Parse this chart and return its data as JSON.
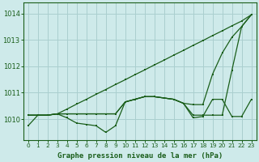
{
  "background_color": "#ceeaea",
  "grid_color": "#aacfcf",
  "line_color": "#1a5e1a",
  "title": "Graphe pression niveau de la mer (hPa)",
  "ylim": [
    1009.2,
    1014.4
  ],
  "xlim": [
    -0.5,
    23.5
  ],
  "yticks": [
    1010,
    1011,
    1012,
    1013,
    1014
  ],
  "xticks": [
    0,
    1,
    2,
    3,
    4,
    5,
    6,
    7,
    8,
    9,
    10,
    11,
    12,
    13,
    14,
    15,
    16,
    17,
    18,
    19,
    20,
    21,
    22,
    23
  ],
  "line_straight": [
    1010.15,
    1010.15,
    1010.15,
    1010.2,
    1010.38,
    1010.57,
    1010.75,
    1010.94,
    1011.12,
    1011.31,
    1011.49,
    1011.68,
    1011.86,
    1012.05,
    1012.23,
    1012.42,
    1012.6,
    1012.79,
    1012.97,
    1013.16,
    1013.34,
    1013.53,
    1013.71,
    1013.95
  ],
  "line_mid_high": [
    1010.15,
    1010.15,
    1010.15,
    1010.2,
    1010.2,
    1010.2,
    1010.2,
    1010.2,
    1010.2,
    1010.2,
    1010.65,
    1010.75,
    1010.85,
    1010.85,
    1010.8,
    1010.75,
    1010.6,
    1010.55,
    1010.55,
    1011.7,
    1012.5,
    1013.1,
    1013.5,
    1013.95
  ],
  "line_mid": [
    1010.15,
    1010.15,
    1010.15,
    1010.2,
    1010.2,
    1010.2,
    1010.2,
    1010.2,
    1010.2,
    1010.2,
    1010.65,
    1010.75,
    1010.85,
    1010.85,
    1010.8,
    1010.75,
    1010.6,
    1010.15,
    1010.15,
    1010.15,
    1010.15,
    1011.85,
    1013.5,
    1013.95
  ],
  "line_bottom": [
    1009.75,
    1010.15,
    1010.15,
    1010.2,
    1010.05,
    1009.85,
    1009.8,
    1009.75,
    1009.5,
    1009.75,
    1010.65,
    1010.75,
    1010.85,
    1010.85,
    1010.8,
    1010.75,
    1010.6,
    1010.05,
    1010.1,
    1010.75,
    1010.75,
    1010.1,
    1010.1,
    1010.75
  ]
}
